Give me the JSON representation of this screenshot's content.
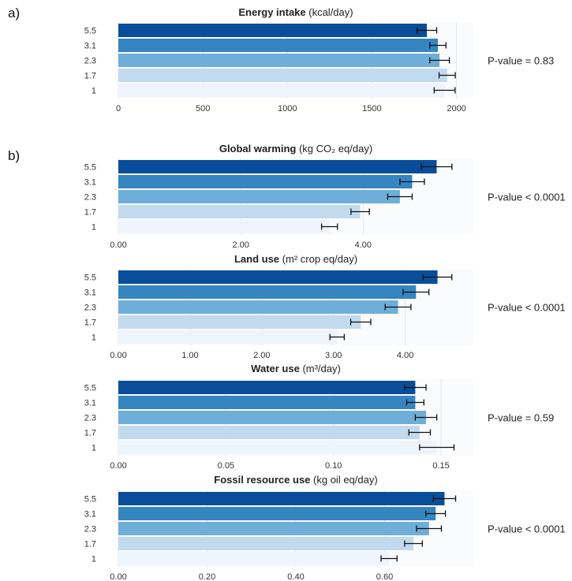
{
  "panel_labels": [
    "a)",
    "b)"
  ],
  "colors": [
    "#eef4fc",
    "#c2daee",
    "#6eaed8",
    "#3585c1",
    "#0a4d9b"
  ],
  "chart_data": [
    {
      "type": "bar",
      "orientation": "horizontal",
      "title_bold": "Energy intake",
      "title_unit": "(kcal/day)",
      "categories": [
        "1",
        "1.7",
        "2.3",
        "3.1",
        "5.5"
      ],
      "values": [
        1930,
        1945,
        1900,
        1890,
        1825
      ],
      "errors": [
        62,
        48,
        58,
        48,
        58
      ],
      "xlim": [
        0,
        2100
      ],
      "ticks": [
        0,
        500,
        1000,
        1500,
        2000
      ],
      "tick_labels": [
        "0",
        "500",
        "1000",
        "1500",
        "2000"
      ],
      "grid": true,
      "pvalue": "P-value = 0.83"
    },
    {
      "type": "bar",
      "orientation": "horizontal",
      "title_bold": "Global warming",
      "title_unit": "(kg CO₂ eq/day)",
      "categories": [
        "1",
        "1.7",
        "2.3",
        "3.1",
        "5.5"
      ],
      "values": [
        3.45,
        3.95,
        4.6,
        4.8,
        5.2
      ],
      "errors": [
        0.13,
        0.15,
        0.2,
        0.2,
        0.25
      ],
      "xlim": [
        0,
        5.8
      ],
      "ticks": [
        0,
        2,
        4
      ],
      "tick_labels": [
        "0.00",
        "2.00",
        "4.00"
      ],
      "grid": true,
      "pvalue": "P-value < 0.0001"
    },
    {
      "type": "bar",
      "orientation": "horizontal",
      "title_bold": "Land use",
      "title_unit": "(m² crop eq/day)",
      "categories": [
        "1",
        "1.7",
        "2.3",
        "3.1",
        "5.5"
      ],
      "values": [
        3.05,
        3.38,
        3.9,
        4.15,
        4.45
      ],
      "errors": [
        0.1,
        0.14,
        0.18,
        0.18,
        0.2
      ],
      "xlim": [
        0,
        4.95
      ],
      "ticks": [
        0,
        1,
        2,
        3,
        4
      ],
      "tick_labels": [
        "0.00",
        "1.00",
        "2.00",
        "3.00",
        "4.00"
      ],
      "grid": true,
      "pvalue": "P-value < 0.0001"
    },
    {
      "type": "bar",
      "orientation": "horizontal",
      "title_bold": "Water use",
      "title_unit": "(m³/day)",
      "categories": [
        "1",
        "1.7",
        "2.3",
        "3.1",
        "5.5"
      ],
      "values": [
        0.148,
        0.14,
        0.143,
        0.138,
        0.138
      ],
      "errors": [
        0.008,
        0.005,
        0.005,
        0.004,
        0.005
      ],
      "xlim": [
        0,
        0.165
      ],
      "ticks": [
        0,
        0.05,
        0.1,
        0.15
      ],
      "tick_labels": [
        "0.00",
        "0.05",
        "0.10",
        "0.15"
      ],
      "grid": true,
      "pvalue": "P-value = 0.59"
    },
    {
      "type": "bar",
      "orientation": "horizontal",
      "title_bold": "Fossil resource use",
      "title_unit": "(kg oil eq/day)",
      "categories": [
        "1",
        "1.7",
        "2.3",
        "3.1",
        "5.5"
      ],
      "values": [
        0.61,
        0.665,
        0.7,
        0.715,
        0.735
      ],
      "errors": [
        0.018,
        0.02,
        0.028,
        0.022,
        0.025
      ],
      "xlim": [
        0,
        0.8
      ],
      "ticks": [
        0,
        0.2,
        0.4,
        0.6
      ],
      "tick_labels": [
        "0.00",
        "0.20",
        "0.40",
        "0.60"
      ],
      "grid": true,
      "pvalue": "P-value < 0.0001"
    }
  ]
}
